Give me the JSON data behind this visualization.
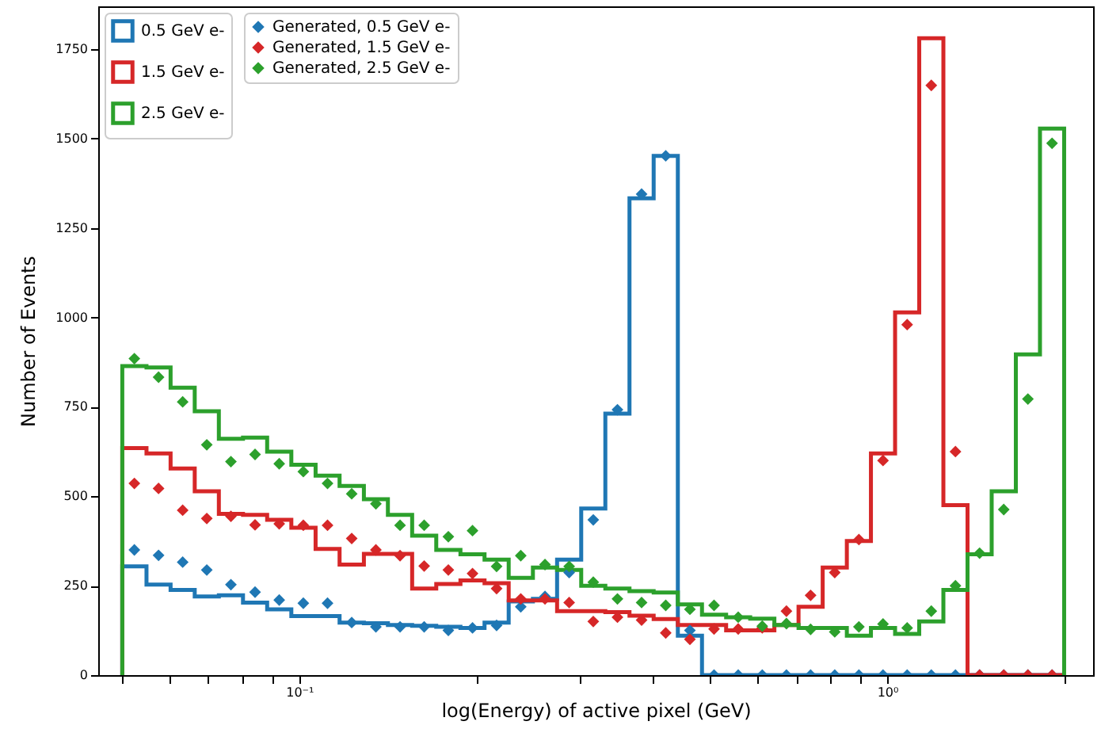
{
  "chart_data": {
    "type": "histogram",
    "xlabel": "log(Energy) of active pixel (GeV)",
    "ylabel": "Number of Events",
    "bins": [
      0.05,
      0.05497,
      0.06041,
      0.0664,
      0.07298,
      0.08022,
      0.08818,
      0.09694,
      0.1066,
      0.1171,
      0.1288,
      0.1415,
      0.1556,
      0.171,
      0.188,
      0.2066,
      0.2271,
      0.2497,
      0.2745,
      0.3017,
      0.3316,
      0.3645,
      0.4007,
      0.4405,
      0.4842,
      0.5322,
      0.5848,
      0.6429,
      0.7067,
      0.7768,
      0.8539,
      0.9384,
      1.0315,
      1.1338,
      1.2463,
      1.3699,
      1.5058,
      1.6553,
      1.8194,
      2
    ],
    "series": [
      {
        "type": "scatter",
        "name": "Generated, 0.5 GeV e-",
        "color": "#1f77b4",
        "x": [
          0.05242,
          0.05763,
          0.06334,
          0.06961,
          0.07651,
          0.0841,
          0.09245,
          0.1016,
          0.1117,
          0.1228,
          0.135,
          0.1484,
          0.1631,
          0.1793,
          0.1971,
          0.2166,
          0.2381,
          0.2618,
          0.2878,
          0.3163,
          0.3477,
          0.3822,
          0.4201,
          0.4618,
          0.5076,
          0.558,
          0.6131,
          0.674,
          0.7409,
          0.8144,
          0.8952,
          0.9839,
          1.0815,
          1.1887,
          1.3066,
          1.4362,
          1.5787,
          1.7354,
          1.9075
        ],
        "values": [
          350,
          335,
          316,
          294,
          253,
          232,
          210,
          201,
          201,
          147,
          135,
          135,
          135,
          125,
          132,
          139,
          191,
          220,
          287,
          434,
          742,
          1345,
          1452,
          125,
          0,
          0,
          0,
          0,
          0,
          0,
          0,
          0,
          0,
          0,
          0,
          0,
          0,
          0,
          0
        ]
      },
      {
        "type": "scatter",
        "name": "Generated, 1.5 GeV e-",
        "color": "#d62728",
        "x": [
          0.05242,
          0.05763,
          0.06334,
          0.06961,
          0.07651,
          0.0841,
          0.09245,
          0.1016,
          0.1117,
          0.1228,
          0.135,
          0.1484,
          0.1631,
          0.1793,
          0.1971,
          0.2166,
          0.2381,
          0.2618,
          0.2878,
          0.3163,
          0.3477,
          0.3822,
          0.4201,
          0.4618,
          0.5076,
          0.558,
          0.6131,
          0.674,
          0.7409,
          0.8144,
          0.8952,
          0.9839,
          1.0815,
          1.1887,
          1.3066,
          1.4362,
          1.5787,
          1.7354,
          1.9075
        ],
        "values": [
          536,
          522,
          461,
          438,
          444,
          420,
          423,
          419,
          419,
          382,
          350,
          334,
          305,
          294,
          284,
          242,
          213,
          213,
          203,
          150,
          162,
          154,
          118,
          100,
          129,
          129,
          132,
          179,
          223,
          287,
          379,
          600,
          980,
          1649,
          625,
          0,
          0,
          0,
          0
        ]
      },
      {
        "type": "scatter",
        "name": "Generated, 2.5 GeV e-",
        "color": "#2ca02c",
        "x": [
          0.05242,
          0.05763,
          0.06334,
          0.06961,
          0.07651,
          0.0841,
          0.09245,
          0.1016,
          0.1117,
          0.1228,
          0.135,
          0.1484,
          0.1631,
          0.1793,
          0.1971,
          0.2166,
          0.2381,
          0.2618,
          0.2878,
          0.3163,
          0.3477,
          0.3822,
          0.4201,
          0.4618,
          0.5076,
          0.558,
          0.6131,
          0.674,
          0.7409,
          0.8144,
          0.8952,
          0.9839,
          1.0815,
          1.1887,
          1.3066,
          1.4362,
          1.5787,
          1.7354,
          1.9075
        ],
        "values": [
          885,
          833,
          764,
          644,
          597,
          617,
          591,
          569,
          536,
          507,
          479,
          419,
          419,
          387,
          404,
          304,
          334,
          309,
          304,
          260,
          213,
          203,
          195,
          184,
          195,
          162,
          137,
          144,
          128,
          121,
          135,
          143,
          132,
          179,
          250,
          341,
          463,
          772,
          1487
        ]
      },
      {
        "name": "0.5 GeV e-",
        "color": "#1f77b4",
        "values": [
          304,
          253,
          238,
          220,
          223,
          203,
          184,
          165,
          165,
          147,
          145,
          140,
          138,
          135,
          132,
          147,
          206,
          213,
          323,
          466,
          731,
          1333,
          1452,
          110,
          0,
          0,
          0,
          0,
          0,
          0,
          0,
          0,
          0,
          0,
          0,
          0,
          0,
          0,
          0
        ]
      },
      {
        "name": "1.5 GeV e-",
        "color": "#d62728",
        "values": [
          635,
          620,
          578,
          514,
          451,
          448,
          434,
          412,
          353,
          309,
          339,
          339,
          242,
          255,
          265,
          257,
          209,
          209,
          179,
          179,
          176,
          166,
          157,
          140,
          140,
          125,
          125,
          140,
          191,
          301,
          375,
          620,
          1014,
          1781,
          475,
          0,
          0,
          0,
          0
        ]
      },
      {
        "name": "2.5 GeV e-",
        "color": "#2ca02c",
        "values": [
          864,
          860,
          804,
          738,
          661,
          664,
          625,
          588,
          558,
          529,
          492,
          448,
          390,
          350,
          338,
          323,
          272,
          301,
          294,
          250,
          242,
          235,
          231,
          198,
          169,
          162,
          158,
          140,
          132,
          132,
          110,
          132,
          115,
          150,
          238,
          338,
          514,
          897,
          1528
        ]
      }
    ],
    "xlim": [
      0.0455,
      2.24
    ],
    "xticks": [
      {
        "value": 0.05,
        "label": null
      },
      {
        "value": 0.06,
        "label": null
      },
      {
        "value": 0.07,
        "label": null
      },
      {
        "value": 0.08,
        "label": null
      },
      {
        "value": 0.09,
        "label": null
      },
      {
        "value": 0.1,
        "label": "10⁻¹"
      },
      {
        "value": 0.2,
        "label": null
      },
      {
        "value": 0.3,
        "label": null
      },
      {
        "value": 0.4,
        "label": null
      },
      {
        "value": 0.5,
        "label": null
      },
      {
        "value": 0.6,
        "label": null
      },
      {
        "value": 0.7,
        "label": null
      },
      {
        "value": 0.8,
        "label": null
      },
      {
        "value": 0.9,
        "label": null
      },
      {
        "value": 1,
        "label": "10⁰"
      },
      {
        "value": 2,
        "label": null
      }
    ],
    "ylim": [
      0,
      1870
    ],
    "yticks": [
      0,
      250,
      500,
      750,
      1000,
      1250,
      1500,
      1750
    ],
    "log": "x",
    "legend": "top left",
    "marker": "diamond"
  }
}
